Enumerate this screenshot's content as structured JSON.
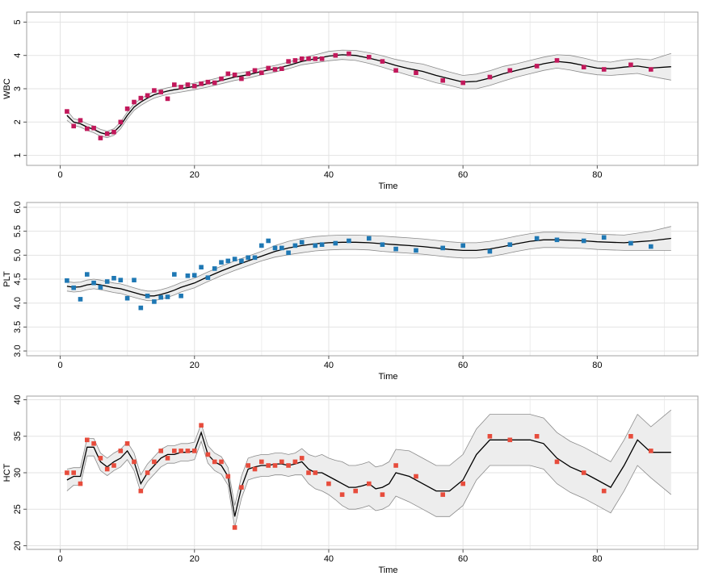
{
  "chart_data": [
    {
      "type": "line",
      "id": "wbc",
      "ylabel": "WBC",
      "xlabel": "Time",
      "xlim": [
        -5,
        95
      ],
      "ylim": [
        0.7,
        5.3
      ],
      "xticks": [
        0,
        20,
        40,
        60,
        80
      ],
      "yticks": [
        1,
        2,
        3,
        4,
        5
      ],
      "grid": true,
      "colors": {
        "points": "#c2185b",
        "line": "#000000",
        "band": "#ededed",
        "band_edge": "#8a8a8a"
      },
      "points_x": [
        1,
        2,
        3,
        4,
        5,
        6,
        7,
        8,
        9,
        10,
        11,
        12,
        13,
        14,
        15,
        16,
        17,
        18,
        19,
        20,
        21,
        22,
        23,
        24,
        25,
        26,
        27,
        28,
        29,
        30,
        31,
        32,
        33,
        34,
        35,
        36,
        37,
        38,
        39,
        41,
        43,
        46,
        48,
        50,
        53,
        57,
        60,
        64,
        67,
        71,
        74,
        78,
        81,
        85,
        88
      ],
      "points_y": [
        2.32,
        1.88,
        2.05,
        1.8,
        1.82,
        1.52,
        1.65,
        1.7,
        2.0,
        2.4,
        2.6,
        2.72,
        2.8,
        2.95,
        2.9,
        2.7,
        3.12,
        3.05,
        3.12,
        3.08,
        3.15,
        3.2,
        3.18,
        3.3,
        3.45,
        3.42,
        3.3,
        3.45,
        3.55,
        3.48,
        3.62,
        3.58,
        3.6,
        3.82,
        3.85,
        3.9,
        3.9,
        3.9,
        3.9,
        4.0,
        4.05,
        3.95,
        3.82,
        3.55,
        3.48,
        3.25,
        3.18,
        3.35,
        3.55,
        3.68,
        3.85,
        3.65,
        3.58,
        3.72,
        3.58
      ],
      "fit_x": [
        1,
        2,
        3,
        4,
        5,
        6,
        7,
        8,
        9,
        10,
        11,
        12,
        13,
        14,
        15,
        16,
        17,
        18,
        20,
        22,
        24,
        26,
        28,
        30,
        32,
        34,
        36,
        38,
        40,
        42,
        44,
        46,
        48,
        50,
        52,
        54,
        56,
        58,
        60,
        62,
        64,
        66,
        68,
        70,
        72,
        74,
        76,
        78,
        80,
        82,
        84,
        86,
        88,
        91
      ],
      "fit_y": [
        2.2,
        2.0,
        1.95,
        1.85,
        1.78,
        1.68,
        1.63,
        1.7,
        1.9,
        2.2,
        2.45,
        2.6,
        2.72,
        2.82,
        2.88,
        2.93,
        2.97,
        3.0,
        3.07,
        3.15,
        3.25,
        3.35,
        3.42,
        3.52,
        3.6,
        3.7,
        3.82,
        3.9,
        3.98,
        4.02,
        4.0,
        3.92,
        3.82,
        3.7,
        3.6,
        3.52,
        3.4,
        3.3,
        3.2,
        3.22,
        3.32,
        3.45,
        3.55,
        3.65,
        3.75,
        3.82,
        3.78,
        3.7,
        3.62,
        3.6,
        3.65,
        3.68,
        3.62,
        3.66
      ],
      "band_half": [
        0.15,
        0.1,
        0.1,
        0.1,
        0.1,
        0.1,
        0.1,
        0.1,
        0.1,
        0.1,
        0.1,
        0.1,
        0.1,
        0.1,
        0.1,
        0.1,
        0.1,
        0.1,
        0.1,
        0.1,
        0.1,
        0.1,
        0.1,
        0.1,
        0.1,
        0.1,
        0.1,
        0.12,
        0.14,
        0.14,
        0.15,
        0.16,
        0.17,
        0.18,
        0.2,
        0.22,
        0.22,
        0.2,
        0.2,
        0.22,
        0.22,
        0.22,
        0.2,
        0.2,
        0.2,
        0.2,
        0.22,
        0.22,
        0.2,
        0.2,
        0.22,
        0.22,
        0.25,
        0.4
      ]
    },
    {
      "type": "line",
      "id": "plt",
      "ylabel": "PLT",
      "xlabel": "Time",
      "xlim": [
        -5,
        95
      ],
      "ylim": [
        2.9,
        6.1
      ],
      "xticks": [
        0,
        20,
        40,
        60,
        80
      ],
      "yticks": [
        3.0,
        3.5,
        4.0,
        4.5,
        5.0,
        5.5,
        6.0
      ],
      "ytick_labels": [
        "3.0",
        "3.5",
        "4.0",
        "4.5",
        "5.0",
        "5.5",
        "6.0"
      ],
      "grid": true,
      "colors": {
        "points": "#1f78b4",
        "line": "#000000",
        "band": "#ededed",
        "band_edge": "#8a8a8a"
      },
      "points_x": [
        1,
        2,
        3,
        4,
        5,
        6,
        7,
        8,
        9,
        10,
        11,
        12,
        13,
        14,
        15,
        16,
        17,
        18,
        19,
        20,
        21,
        22,
        23,
        24,
        25,
        26,
        27,
        28,
        29,
        30,
        31,
        32,
        33,
        34,
        35,
        36,
        38,
        39,
        41,
        43,
        46,
        48,
        50,
        53,
        57,
        60,
        64,
        67,
        71,
        74,
        78,
        81,
        85,
        88
      ],
      "points_y": [
        4.47,
        4.32,
        4.08,
        4.6,
        4.42,
        4.33,
        4.45,
        4.52,
        4.48,
        4.1,
        4.48,
        3.9,
        4.15,
        4.03,
        4.12,
        4.13,
        4.6,
        4.15,
        4.57,
        4.58,
        4.75,
        4.53,
        4.72,
        4.85,
        4.88,
        4.92,
        4.88,
        4.95,
        4.95,
        5.2,
        5.3,
        5.15,
        5.15,
        5.05,
        5.2,
        5.27,
        5.2,
        5.22,
        5.25,
        5.3,
        5.35,
        5.22,
        5.13,
        5.1,
        5.15,
        5.2,
        5.08,
        5.22,
        5.35,
        5.32,
        5.3,
        5.37,
        5.25,
        5.18
      ],
      "fit_x": [
        1,
        2,
        3,
        4,
        5,
        6,
        7,
        8,
        9,
        10,
        11,
        12,
        13,
        14,
        15,
        16,
        17,
        18,
        20,
        22,
        24,
        26,
        28,
        30,
        32,
        34,
        36,
        38,
        40,
        42,
        44,
        46,
        48,
        50,
        52,
        54,
        56,
        58,
        60,
        62,
        64,
        66,
        68,
        70,
        72,
        74,
        76,
        78,
        80,
        82,
        84,
        86,
        88,
        91
      ],
      "fit_y": [
        4.35,
        4.33,
        4.34,
        4.38,
        4.4,
        4.38,
        4.35,
        4.32,
        4.3,
        4.26,
        4.22,
        4.18,
        4.15,
        4.15,
        4.18,
        4.22,
        4.27,
        4.33,
        4.42,
        4.55,
        4.67,
        4.78,
        4.88,
        4.98,
        5.08,
        5.15,
        5.2,
        5.24,
        5.26,
        5.27,
        5.27,
        5.26,
        5.24,
        5.22,
        5.2,
        5.18,
        5.15,
        5.12,
        5.1,
        5.1,
        5.13,
        5.18,
        5.24,
        5.29,
        5.32,
        5.32,
        5.31,
        5.3,
        5.28,
        5.27,
        5.26,
        5.28,
        5.3,
        5.35
      ],
      "band_half": [
        0.1,
        0.1,
        0.1,
        0.1,
        0.1,
        0.1,
        0.1,
        0.1,
        0.1,
        0.1,
        0.1,
        0.1,
        0.1,
        0.1,
        0.1,
        0.1,
        0.1,
        0.1,
        0.1,
        0.1,
        0.1,
        0.1,
        0.1,
        0.1,
        0.12,
        0.14,
        0.15,
        0.15,
        0.15,
        0.15,
        0.15,
        0.15,
        0.16,
        0.16,
        0.16,
        0.16,
        0.16,
        0.16,
        0.16,
        0.16,
        0.16,
        0.16,
        0.16,
        0.16,
        0.16,
        0.16,
        0.16,
        0.16,
        0.16,
        0.16,
        0.16,
        0.18,
        0.2,
        0.25
      ]
    },
    {
      "type": "line",
      "id": "hct",
      "ylabel": "HCT",
      "xlabel": "Time",
      "xlim": [
        -5,
        95
      ],
      "ylim": [
        19.5,
        40.5
      ],
      "xticks": [
        0,
        20,
        40,
        60,
        80
      ],
      "yticks": [
        20,
        25,
        30,
        35,
        40
      ],
      "grid": true,
      "colors": {
        "points": "#e74c3c",
        "line": "#000000",
        "band": "#ededed",
        "band_edge": "#8a8a8a"
      },
      "points_x": [
        1,
        2,
        3,
        4,
        5,
        6,
        7,
        8,
        9,
        10,
        11,
        12,
        13,
        14,
        15,
        16,
        17,
        18,
        19,
        20,
        21,
        22,
        23,
        24,
        25,
        26,
        27,
        28,
        29,
        30,
        31,
        32,
        33,
        34,
        35,
        36,
        37,
        38,
        40,
        42,
        44,
        46,
        48,
        50,
        53,
        57,
        60,
        64,
        67,
        71,
        74,
        78,
        81,
        85,
        88
      ],
      "points_y": [
        30.0,
        30.0,
        28.5,
        34.5,
        34.0,
        32.0,
        30.5,
        31.0,
        33.0,
        34.0,
        31.5,
        27.5,
        30.0,
        31.5,
        33.0,
        32.0,
        33.0,
        33.0,
        33.0,
        33.0,
        36.5,
        32.5,
        31.5,
        31.5,
        29.5,
        22.5,
        28.0,
        31.0,
        30.5,
        31.5,
        31.0,
        31.0,
        31.5,
        31.0,
        31.5,
        32.0,
        30.0,
        30.0,
        28.5,
        27.0,
        27.5,
        28.5,
        27.0,
        31.0,
        29.5,
        27.0,
        28.5,
        35.0,
        34.5,
        35.0,
        31.5,
        30.0,
        27.5,
        35.0,
        33.0
      ],
      "fit_x": [
        1,
        2,
        3,
        4,
        5,
        6,
        7,
        8,
        9,
        10,
        11,
        12,
        13,
        14,
        15,
        16,
        17,
        18,
        19,
        20,
        21,
        22,
        23,
        24,
        25,
        26,
        27,
        28,
        29,
        30,
        31,
        32,
        33,
        34,
        35,
        36,
        37,
        38,
        39,
        40,
        41,
        42,
        43,
        44,
        45,
        46,
        47,
        48,
        49,
        50,
        52,
        54,
        56,
        58,
        60,
        62,
        64,
        66,
        68,
        70,
        72,
        74,
        76,
        78,
        80,
        82,
        84,
        86,
        88,
        91
      ],
      "fit_y": [
        29.0,
        29.5,
        29.5,
        33.5,
        33.5,
        31.5,
        30.8,
        31.5,
        32.0,
        33.0,
        31.5,
        28.5,
        30.0,
        31.0,
        32.0,
        32.5,
        32.5,
        32.8,
        32.8,
        33.0,
        35.5,
        32.5,
        31.5,
        31.0,
        29.5,
        24.0,
        28.0,
        30.5,
        30.8,
        31.0,
        31.0,
        31.2,
        31.2,
        31.0,
        31.2,
        31.5,
        30.5,
        30.0,
        30.0,
        29.5,
        29.0,
        28.5,
        28.0,
        28.0,
        28.2,
        28.5,
        27.8,
        28.0,
        28.5,
        30.0,
        29.5,
        28.5,
        27.5,
        27.5,
        29.0,
        32.5,
        34.5,
        34.5,
        34.5,
        34.5,
        34.0,
        32.0,
        30.8,
        30.0,
        29.0,
        28.0,
        31.0,
        34.5,
        32.8,
        32.8
      ],
      "band_half": [
        1.5,
        1.2,
        1.2,
        1.2,
        1.2,
        1.2,
        1.2,
        1.2,
        1.2,
        1.2,
        1.2,
        1.2,
        1.2,
        1.2,
        1.2,
        1.2,
        1.2,
        1.2,
        1.2,
        1.2,
        1.2,
        1.2,
        1.2,
        1.2,
        1.2,
        1.5,
        1.5,
        1.5,
        1.5,
        1.5,
        1.5,
        1.5,
        1.5,
        1.5,
        1.5,
        1.8,
        2.0,
        2.2,
        2.5,
        2.5,
        2.7,
        3.0,
        3.0,
        3.0,
        3.0,
        3.0,
        3.0,
        3.0,
        3.0,
        3.2,
        3.5,
        3.5,
        3.5,
        3.5,
        3.5,
        3.5,
        3.5,
        3.5,
        3.5,
        3.5,
        3.5,
        3.5,
        3.5,
        3.5,
        3.5,
        3.5,
        3.5,
        3.5,
        3.5,
        5.8
      ]
    }
  ]
}
